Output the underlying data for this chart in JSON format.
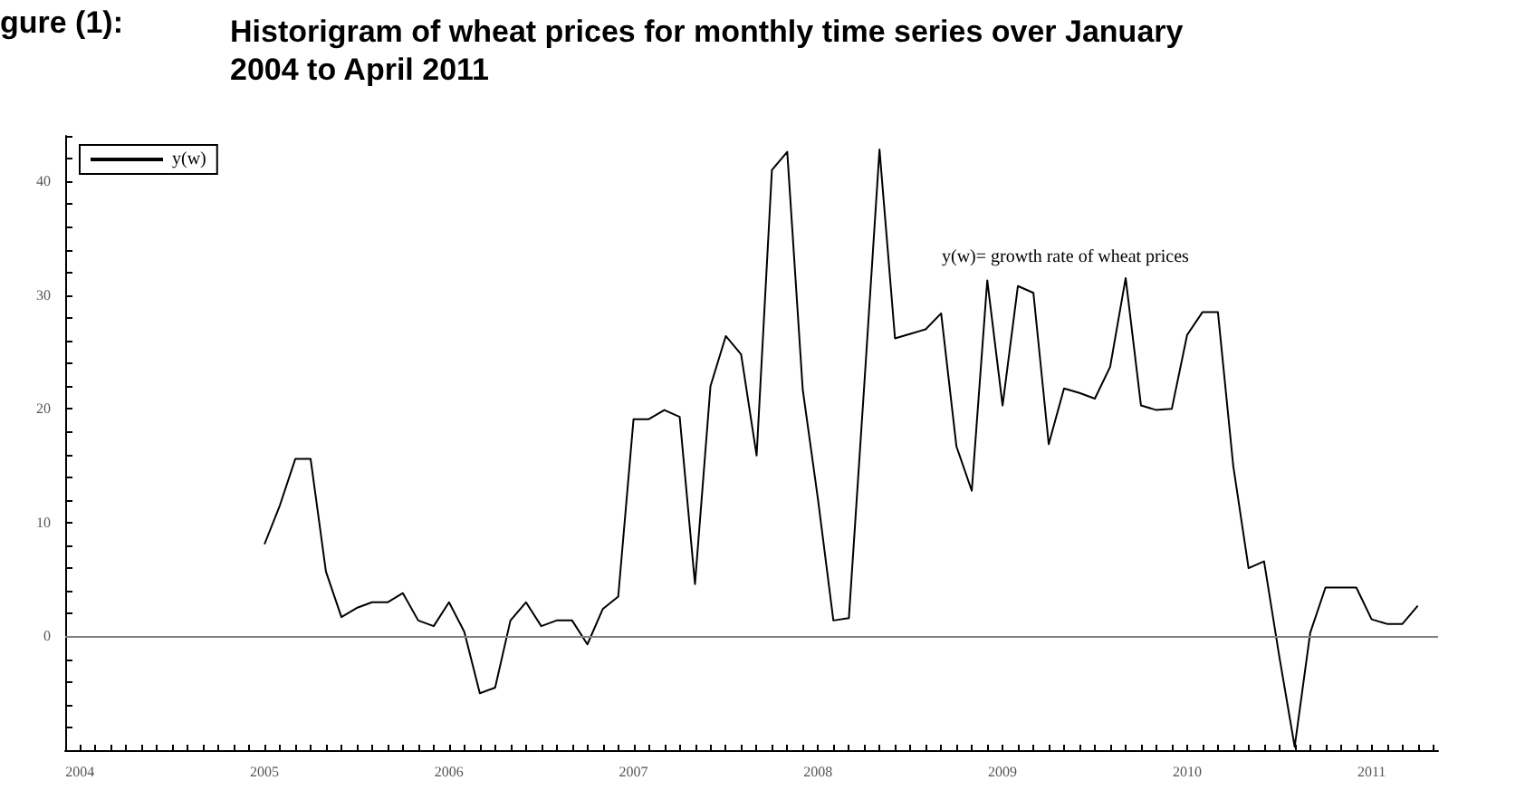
{
  "chart_data": {
    "type": "line",
    "title": "Historigram of wheat prices for monthly time series over January 2004 to April 2011",
    "annotations": [
      "gure (1):",
      "y(w)= growth rate of wheat prices"
    ],
    "x": [
      2005,
      2005.083,
      2005.167,
      2005.25,
      2005.333,
      2005.417,
      2005.5,
      2005.583,
      2005.667,
      2005.75,
      2005.833,
      2005.917,
      2006,
      2006.083,
      2006.167,
      2006.25,
      2006.333,
      2006.417,
      2006.5,
      2006.583,
      2006.667,
      2006.75,
      2006.833,
      2006.917,
      2007,
      2007.083,
      2007.167,
      2007.25,
      2007.333,
      2007.417,
      2007.5,
      2007.583,
      2007.667,
      2007.75,
      2007.833,
      2007.917,
      2008,
      2008.083,
      2008.167,
      2008.25,
      2008.333,
      2008.417,
      2008.5,
      2008.583,
      2008.667,
      2008.75,
      2008.833,
      2008.917,
      2009,
      2009.083,
      2009.167,
      2009.25,
      2009.333,
      2009.417,
      2009.5,
      2009.583,
      2009.667,
      2009.75,
      2009.833,
      2009.917,
      2010,
      2010.083,
      2010.167,
      2010.25,
      2010.333,
      2010.417,
      2010.5,
      2010.583,
      2010.667,
      2010.75,
      2010.833,
      2010.917,
      2011,
      2011.083,
      2011.167,
      2011.25
    ],
    "series": [
      {
        "name": "y(w)",
        "color": "#000000",
        "values": [
          8.1,
          11.5,
          15.6,
          15.6,
          5.7,
          1.7,
          2.5,
          3.0,
          3.0,
          3.8,
          1.4,
          0.9,
          3.0,
          0.4,
          -5.0,
          -4.5,
          1.4,
          3.0,
          0.9,
          1.4,
          1.4,
          -0.7,
          2.4,
          3.5,
          19.1,
          19.1,
          19.9,
          19.3,
          4.6,
          22.0,
          26.4,
          24.8,
          15.9,
          41.0,
          42.6,
          21.7,
          12.0,
          1.4,
          1.6,
          22.0,
          42.8,
          26.2,
          26.6,
          27.0,
          28.4,
          16.7,
          12.8,
          31.3,
          20.3,
          30.8,
          30.2,
          16.9,
          21.8,
          21.4,
          20.9,
          23.7,
          31.5,
          20.3,
          19.9,
          20.0,
          26.5,
          28.5,
          28.5,
          15.0,
          6.0,
          6.6,
          -1.8,
          -9.7,
          0.3,
          4.3,
          4.3,
          4.3,
          1.5,
          1.1,
          1.1,
          2.7
        ]
      }
    ],
    "xlim": [
      2003.92,
      2011.36
    ],
    "xticks": [
      2004,
      2005,
      2006,
      2007,
      2008,
      2009,
      2010,
      2011
    ],
    "ylim": [
      -10,
      44
    ],
    "yticks": [
      0,
      10,
      20,
      30,
      40
    ],
    "ref_lines": [
      {
        "axis": "y",
        "value": 0,
        "color": "#808080"
      }
    ],
    "grid": false,
    "legend": "top left",
    "marker": "none",
    "line_style": "solid"
  }
}
